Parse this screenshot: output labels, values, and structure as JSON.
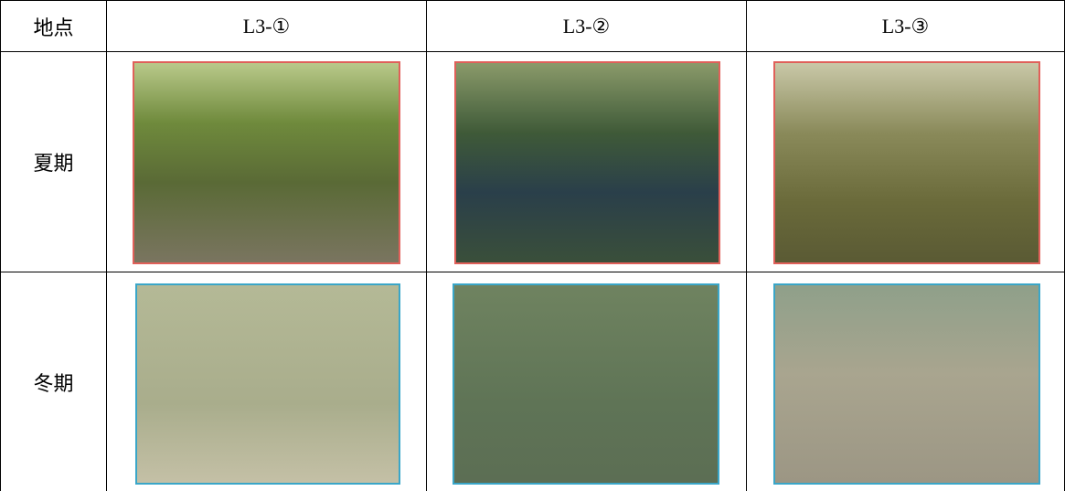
{
  "table": {
    "header": [
      "地点",
      "L3-①",
      "L3-②",
      "L3-③"
    ],
    "rows": [
      [
        "夏期"
      ],
      [
        "冬期"
      ]
    ]
  }
}
